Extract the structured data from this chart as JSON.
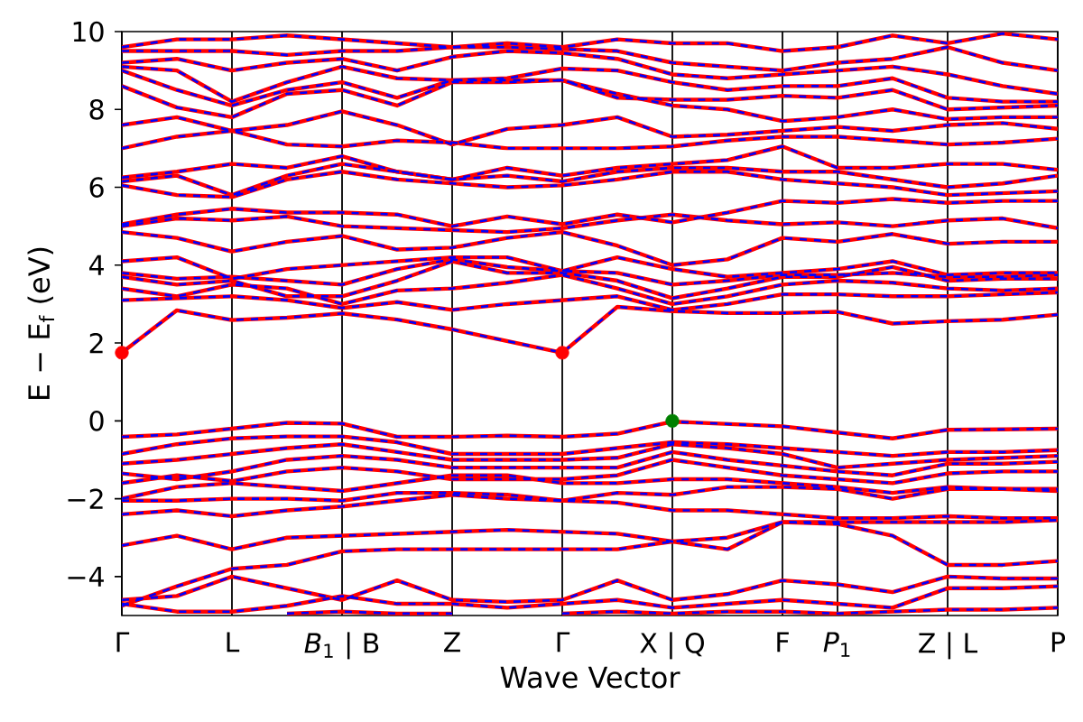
{
  "chart_data": {
    "type": "line",
    "xlabel": "Wave Vector",
    "ylabel": "E − E$_{f}$ (eV)",
    "categories": [
      "Γ",
      null,
      "L",
      null,
      "*B*$_{1}$ | B",
      null,
      "Z",
      null,
      "Γ",
      null,
      "X | Q",
      null,
      "F",
      "*P*$_{1}$",
      null,
      "Z | L",
      null,
      "P"
    ],
    "ylim": [
      -5,
      10
    ],
    "yticks": [
      {
        "value": -4,
        "label": "−4"
      },
      {
        "value": -2,
        "label": "−2"
      },
      0,
      2,
      4,
      6,
      8,
      10
    ],
    "grid": "x",
    "series": [
      {
        "color": "#ff0000",
        "values": [
          -0.41,
          -0.35,
          -0.2,
          -0.05,
          -0.07,
          -0.41,
          -0.41,
          -0.38,
          -0.41,
          -0.33,
          -0.02,
          -0.08,
          -0.14,
          -0.3,
          -0.45,
          -0.23,
          -0.22,
          -0.2
        ]
      },
      {
        "color": "#ff0000",
        "values": [
          -0.85,
          -0.6,
          -0.45,
          -0.4,
          -0.4,
          -0.55,
          -0.85,
          -0.85,
          -0.85,
          -0.7,
          -0.55,
          -0.6,
          -0.7,
          -0.8,
          -0.9,
          -0.8,
          -0.8,
          -0.75
        ]
      },
      {
        "color": "#ff0000",
        "values": [
          -1.1,
          -1.0,
          -0.85,
          -0.7,
          -0.6,
          -0.8,
          -1.0,
          -1.0,
          -1.0,
          -0.95,
          -0.6,
          -0.7,
          -0.85,
          -1.2,
          -1.1,
          -1.0,
          -0.95,
          -0.9
        ]
      },
      {
        "color": "#ff0000",
        "values": [
          -1.35,
          -1.5,
          -1.3,
          -1.0,
          -0.9,
          -1.0,
          -1.2,
          -1.2,
          -1.2,
          -1.2,
          -0.8,
          -1.0,
          -1.15,
          -1.3,
          -1.4,
          -1.1,
          -1.1,
          -1.05
        ]
      },
      {
        "color": "#ff0000",
        "values": [
          -1.6,
          -1.4,
          -1.55,
          -1.3,
          -1.2,
          -1.3,
          -1.5,
          -1.5,
          -1.5,
          -1.4,
          -1.0,
          -1.2,
          -1.4,
          -1.5,
          -1.6,
          -1.35,
          -1.3,
          -1.3
        ]
      },
      {
        "color": "#ff0000",
        "values": [
          -2.0,
          -1.7,
          -1.6,
          -1.7,
          -1.8,
          -1.6,
          -1.4,
          -1.4,
          -1.6,
          -1.6,
          -1.5,
          -1.5,
          -1.6,
          -1.7,
          -1.85,
          -1.7,
          -1.75,
          -1.75
        ]
      },
      {
        "color": "#ff0000",
        "values": [
          -2.05,
          -2.05,
          -2.0,
          -2.0,
          -2.05,
          -1.85,
          -1.85,
          -1.9,
          -2.05,
          -1.85,
          -1.9,
          -1.7,
          -1.7,
          -1.75,
          -2.0,
          -1.75,
          -1.75,
          -1.8
        ]
      },
      {
        "color": "#ff0000",
        "values": [
          -2.4,
          -2.3,
          -2.45,
          -2.3,
          -2.2,
          -2.05,
          -1.9,
          -2.0,
          -2.05,
          -2.1,
          -2.3,
          -2.3,
          -2.4,
          -2.5,
          -2.5,
          -2.45,
          -2.5,
          -2.5
        ]
      },
      {
        "color": "#ff0000",
        "values": [
          -3.2,
          -2.95,
          -3.3,
          -3.0,
          -2.95,
          -2.9,
          -2.85,
          -2.8,
          -2.85,
          -2.9,
          -3.1,
          -3.3,
          -2.6,
          -2.6,
          -2.6,
          -2.6,
          -2.6,
          -2.55
        ]
      },
      {
        "color": "#ff0000",
        "values": [
          -4.75,
          -4.25,
          -3.8,
          -3.7,
          -3.35,
          -3.3,
          -3.3,
          -3.3,
          -3.3,
          -3.3,
          -3.1,
          -3.0,
          -2.6,
          -2.65,
          -2.95,
          -3.7,
          -3.7,
          -3.6
        ]
      },
      {
        "color": "#ff0000",
        "values": [
          -4.6,
          -4.5,
          -4.0,
          -4.3,
          -4.6,
          -4.1,
          -4.6,
          -4.65,
          -4.6,
          -4.1,
          -4.6,
          -4.45,
          -4.1,
          -4.2,
          -4.4,
          -4.0,
          -4.05,
          -4.05
        ]
      },
      {
        "color": "#ff0000",
        "values": [
          -4.7,
          -4.9,
          -4.9,
          -4.75,
          -4.5,
          -4.7,
          -4.7,
          -4.8,
          -4.7,
          -4.6,
          -4.8,
          -4.7,
          -4.6,
          -4.7,
          -4.8,
          -4.3,
          -4.3,
          -4.25
        ]
      },
      {
        "color": "#ff0000",
        "values": [
          null,
          null,
          null,
          -4.95,
          -4.9,
          -4.95,
          -4.95,
          null,
          -4.95,
          -4.9,
          -4.95,
          -4.9,
          -4.9,
          -4.95,
          -4.9,
          -4.85,
          -4.85,
          -4.8
        ]
      },
      {
        "color": "#ff0000",
        "values": [
          1.75,
          2.84,
          2.59,
          2.65,
          2.76,
          2.6,
          2.35,
          2.05,
          1.75,
          2.93,
          2.82,
          2.77,
          2.77,
          2.8,
          2.5,
          2.56,
          2.6,
          2.73
        ]
      },
      {
        "color": "#ff0000",
        "values": [
          3.1,
          3.15,
          3.2,
          3.1,
          2.9,
          3.05,
          2.85,
          3.0,
          3.1,
          3.2,
          2.85,
          3.0,
          3.25,
          3.25,
          3.2,
          3.2,
          3.25,
          3.3
        ]
      },
      {
        "color": "#ff0000",
        "values": [
          3.4,
          3.2,
          3.5,
          3.4,
          3.0,
          3.35,
          3.4,
          3.55,
          3.75,
          3.4,
          3.0,
          3.2,
          3.5,
          3.6,
          3.55,
          3.4,
          3.35,
          3.4
        ]
      },
      {
        "color": "#ff0000",
        "values": [
          3.7,
          3.5,
          3.6,
          3.2,
          3.2,
          3.6,
          4.1,
          3.8,
          3.8,
          3.6,
          3.15,
          3.4,
          3.7,
          3.7,
          3.95,
          3.6,
          3.65,
          3.65
        ]
      },
      {
        "color": "#ff0000",
        "values": [
          3.8,
          3.65,
          3.7,
          3.6,
          3.5,
          3.9,
          4.15,
          3.95,
          3.85,
          3.8,
          3.5,
          3.6,
          3.75,
          3.75,
          3.8,
          3.7,
          3.7,
          3.75
        ]
      },
      {
        "color": "#ff0000",
        "values": [
          4.1,
          4.2,
          3.65,
          3.9,
          4.0,
          4.1,
          4.2,
          4.2,
          3.85,
          4.2,
          3.9,
          3.7,
          3.8,
          3.9,
          4.1,
          3.75,
          3.8,
          3.8
        ]
      },
      {
        "color": "#ff0000",
        "values": [
          4.85,
          4.7,
          4.35,
          4.6,
          4.75,
          4.4,
          4.45,
          4.7,
          4.85,
          4.5,
          4.0,
          4.15,
          4.7,
          4.6,
          4.8,
          4.55,
          4.6,
          4.6
        ]
      },
      {
        "color": "#ff0000",
        "values": [
          5.0,
          5.2,
          5.15,
          5.25,
          5.0,
          4.95,
          4.9,
          4.85,
          4.95,
          5.15,
          5.3,
          5.15,
          5.05,
          5.1,
          5.0,
          5.15,
          5.2,
          4.95
        ]
      },
      {
        "color": "#ff0000",
        "values": [
          5.05,
          5.3,
          5.45,
          5.35,
          5.35,
          5.3,
          5.0,
          5.25,
          5.05,
          5.3,
          5.1,
          5.35,
          5.65,
          5.6,
          5.7,
          5.6,
          5.65,
          5.65
        ]
      },
      {
        "color": "#ff0000",
        "values": [
          6.05,
          5.8,
          5.75,
          6.2,
          6.4,
          6.2,
          6.1,
          6.0,
          6.05,
          6.2,
          6.4,
          6.4,
          6.2,
          6.1,
          6.0,
          5.8,
          5.85,
          5.9
        ]
      },
      {
        "color": "#ff0000",
        "values": [
          6.15,
          6.3,
          5.8,
          6.3,
          6.6,
          6.4,
          6.2,
          6.3,
          6.15,
          6.4,
          6.5,
          6.5,
          6.4,
          6.4,
          6.2,
          6.0,
          6.1,
          6.3
        ]
      },
      {
        "color": "#ff0000",
        "values": [
          6.25,
          6.4,
          6.6,
          6.5,
          6.8,
          6.4,
          6.2,
          6.5,
          6.3,
          6.5,
          6.6,
          6.7,
          7.05,
          6.5,
          6.5,
          6.6,
          6.6,
          6.45
        ]
      },
      {
        "color": "#ff0000",
        "values": [
          7.0,
          7.3,
          7.45,
          7.1,
          7.05,
          7.2,
          7.15,
          7.0,
          7.0,
          7.0,
          7.05,
          7.2,
          7.3,
          7.3,
          7.2,
          7.1,
          7.15,
          7.25
        ]
      },
      {
        "color": "#ff0000",
        "values": [
          7.6,
          7.8,
          7.45,
          7.6,
          7.95,
          7.6,
          7.1,
          7.5,
          7.6,
          7.8,
          7.3,
          7.35,
          7.45,
          7.55,
          7.45,
          7.6,
          7.65,
          7.5
        ]
      },
      {
        "color": "#ff0000",
        "values": [
          8.6,
          8.05,
          7.8,
          8.4,
          8.5,
          8.1,
          8.7,
          8.7,
          8.75,
          8.4,
          8.1,
          8.0,
          7.7,
          7.8,
          8.0,
          7.75,
          7.8,
          7.8
        ]
      },
      {
        "color": "#ff0000",
        "values": [
          9.0,
          8.5,
          8.1,
          8.5,
          8.7,
          8.3,
          8.75,
          8.75,
          8.75,
          8.3,
          8.25,
          8.25,
          8.35,
          8.3,
          8.5,
          8.0,
          8.05,
          8.1
        ]
      },
      {
        "color": "#ff0000",
        "values": [
          9.1,
          9.0,
          8.2,
          8.7,
          9.1,
          8.8,
          8.75,
          8.8,
          9.05,
          9.0,
          8.7,
          8.5,
          8.6,
          8.6,
          8.8,
          8.3,
          8.2,
          8.2
        ]
      },
      {
        "color": "#ff0000",
        "values": [
          9.2,
          9.3,
          9.0,
          9.2,
          9.3,
          9.0,
          9.35,
          9.5,
          9.45,
          9.3,
          8.9,
          8.8,
          8.9,
          9.0,
          9.1,
          8.9,
          8.6,
          8.4
        ]
      },
      {
        "color": "#ff0000",
        "values": [
          9.5,
          9.5,
          9.5,
          9.4,
          9.5,
          9.5,
          9.6,
          9.6,
          9.55,
          9.5,
          9.2,
          9.1,
          9.0,
          9.2,
          9.3,
          9.6,
          9.2,
          9.0
        ]
      },
      {
        "color": "#ff0000",
        "values": [
          9.6,
          9.8,
          9.8,
          9.9,
          9.8,
          9.7,
          9.6,
          9.7,
          9.6,
          9.8,
          9.7,
          9.7,
          9.5,
          9.6,
          9.9,
          9.7,
          9.95,
          9.8
        ]
      },
      {
        "color": "#0000ff",
        "line_style": "dashed",
        "values": [
          -0.41,
          -0.35,
          -0.2,
          -0.05,
          -0.07,
          -0.41,
          -0.41,
          -0.38,
          -0.41,
          -0.33,
          -0.02,
          -0.08,
          -0.14,
          -0.3,
          -0.45,
          -0.23,
          -0.22,
          -0.2
        ]
      },
      {
        "color": "#0000ff",
        "line_style": "dashed",
        "values": [
          -0.85,
          -0.6,
          -0.45,
          -0.4,
          -0.4,
          -0.55,
          -0.85,
          -0.85,
          -0.85,
          -0.7,
          -0.55,
          -0.6,
          -0.7,
          -0.8,
          -0.9,
          -0.8,
          -0.8,
          -0.75
        ]
      },
      {
        "color": "#0000ff",
        "line_style": "dashed",
        "values": [
          -1.1,
          -1.0,
          -0.85,
          -0.7,
          -0.6,
          -0.8,
          -1.0,
          -1.0,
          -1.0,
          -0.95,
          -0.6,
          -0.7,
          -0.85,
          -1.2,
          -1.1,
          -1.0,
          -0.95,
          -0.9
        ]
      },
      {
        "color": "#0000ff",
        "line_style": "dashed",
        "values": [
          -1.35,
          -1.5,
          -1.3,
          -1.0,
          -0.9,
          -1.0,
          -1.2,
          -1.2,
          -1.2,
          -1.2,
          -0.8,
          -1.0,
          -1.15,
          -1.3,
          -1.4,
          -1.1,
          -1.1,
          -1.05
        ]
      },
      {
        "color": "#0000ff",
        "line_style": "dashed",
        "values": [
          -1.6,
          -1.4,
          -1.55,
          -1.3,
          -1.2,
          -1.3,
          -1.5,
          -1.5,
          -1.5,
          -1.4,
          -1.0,
          -1.2,
          -1.4,
          -1.5,
          -1.6,
          -1.35,
          -1.3,
          -1.3
        ]
      },
      {
        "color": "#0000ff",
        "line_style": "dashed",
        "values": [
          -2.0,
          -1.7,
          -1.6,
          -1.7,
          -1.8,
          -1.6,
          -1.4,
          -1.4,
          -1.6,
          -1.6,
          -1.5,
          -1.5,
          -1.6,
          -1.7,
          -1.85,
          -1.7,
          -1.75,
          -1.75
        ]
      },
      {
        "color": "#0000ff",
        "line_style": "dashed",
        "values": [
          -2.05,
          -2.05,
          -2.0,
          -2.0,
          -2.05,
          -1.85,
          -1.85,
          -1.9,
          -2.05,
          -1.85,
          -1.9,
          -1.7,
          -1.7,
          -1.75,
          -2.0,
          -1.75,
          -1.75,
          -1.8
        ]
      },
      {
        "color": "#0000ff",
        "line_style": "dashed",
        "values": [
          -2.4,
          -2.3,
          -2.45,
          -2.3,
          -2.2,
          -2.05,
          -1.9,
          -2.0,
          -2.05,
          -2.1,
          -2.3,
          -2.3,
          -2.4,
          -2.5,
          -2.5,
          -2.45,
          -2.5,
          -2.5
        ]
      },
      {
        "color": "#0000ff",
        "line_style": "dashed",
        "values": [
          -3.2,
          -2.95,
          -3.3,
          -3.0,
          -2.95,
          -2.9,
          -2.85,
          -2.8,
          -2.85,
          -2.9,
          -3.1,
          -3.3,
          -2.6,
          -2.6,
          -2.6,
          -2.6,
          -2.6,
          -2.55
        ]
      },
      {
        "color": "#0000ff",
        "line_style": "dashed",
        "values": [
          -4.75,
          -4.25,
          -3.8,
          -3.7,
          -3.35,
          -3.3,
          -3.3,
          -3.3,
          -3.3,
          -3.3,
          -3.1,
          -3.0,
          -2.6,
          -2.65,
          -2.95,
          -3.7,
          -3.7,
          -3.6
        ]
      },
      {
        "color": "#0000ff",
        "line_style": "dashed",
        "values": [
          -4.6,
          -4.5,
          -4.0,
          -4.3,
          -4.6,
          -4.1,
          -4.6,
          -4.65,
          -4.6,
          -4.1,
          -4.6,
          -4.45,
          -4.1,
          -4.2,
          -4.4,
          -4.0,
          -4.05,
          -4.05
        ]
      },
      {
        "color": "#0000ff",
        "line_style": "dashed",
        "values": [
          -4.7,
          -4.9,
          -4.9,
          -4.75,
          -4.5,
          -4.7,
          -4.7,
          -4.8,
          -4.7,
          -4.6,
          -4.8,
          -4.7,
          -4.6,
          -4.7,
          -4.8,
          -4.3,
          -4.3,
          -4.25
        ]
      },
      {
        "color": "#0000ff",
        "line_style": "dashed",
        "values": [
          null,
          null,
          null,
          -4.95,
          -4.9,
          -4.95,
          -4.95,
          null,
          -4.95,
          -4.9,
          -4.95,
          -4.9,
          -4.9,
          -4.95,
          -4.9,
          -4.85,
          -4.85,
          -4.8
        ]
      },
      {
        "color": "#0000ff",
        "line_style": "dashed",
        "values": [
          1.75,
          2.84,
          2.59,
          2.65,
          2.76,
          2.6,
          2.35,
          2.05,
          1.75,
          2.93,
          2.82,
          2.77,
          2.77,
          2.8,
          2.5,
          2.56,
          2.6,
          2.73
        ]
      },
      {
        "color": "#0000ff",
        "line_style": "dashed",
        "values": [
          3.1,
          3.15,
          3.2,
          3.1,
          2.9,
          3.05,
          2.85,
          3.0,
          3.1,
          3.2,
          2.85,
          3.0,
          3.25,
          3.25,
          3.2,
          3.2,
          3.25,
          3.3
        ]
      },
      {
        "color": "#0000ff",
        "line_style": "dashed",
        "values": [
          3.4,
          3.2,
          3.5,
          3.4,
          3.0,
          3.35,
          3.4,
          3.55,
          3.75,
          3.4,
          3.0,
          3.2,
          3.5,
          3.6,
          3.55,
          3.4,
          3.35,
          3.4
        ]
      },
      {
        "color": "#0000ff",
        "line_style": "dashed",
        "values": [
          3.7,
          3.5,
          3.6,
          3.2,
          3.2,
          3.6,
          4.1,
          3.8,
          3.8,
          3.6,
          3.15,
          3.4,
          3.7,
          3.7,
          3.95,
          3.6,
          3.65,
          3.65
        ]
      },
      {
        "color": "#0000ff",
        "line_style": "dashed",
        "values": [
          3.8,
          3.65,
          3.7,
          3.6,
          3.5,
          3.9,
          4.15,
          3.95,
          3.85,
          3.8,
          3.5,
          3.6,
          3.75,
          3.75,
          3.8,
          3.7,
          3.7,
          3.75
        ]
      },
      {
        "color": "#0000ff",
        "line_style": "dashed",
        "values": [
          4.1,
          4.2,
          3.65,
          3.9,
          4.0,
          4.1,
          4.2,
          4.2,
          3.85,
          4.2,
          3.9,
          3.7,
          3.8,
          3.9,
          4.1,
          3.75,
          3.8,
          3.8
        ]
      },
      {
        "color": "#0000ff",
        "line_style": "dashed",
        "values": [
          4.85,
          4.7,
          4.35,
          4.6,
          4.75,
          4.4,
          4.45,
          4.7,
          4.85,
          4.5,
          4.0,
          4.15,
          4.7,
          4.6,
          4.8,
          4.55,
          4.6,
          4.6
        ]
      },
      {
        "color": "#0000ff",
        "line_style": "dashed",
        "values": [
          5.0,
          5.2,
          5.15,
          5.25,
          5.0,
          4.95,
          4.9,
          4.85,
          4.95,
          5.15,
          5.3,
          5.15,
          5.05,
          5.1,
          5.0,
          5.15,
          5.2,
          4.95
        ]
      },
      {
        "color": "#0000ff",
        "line_style": "dashed",
        "values": [
          5.05,
          5.3,
          5.45,
          5.35,
          5.35,
          5.3,
          5.0,
          5.25,
          5.05,
          5.3,
          5.1,
          5.35,
          5.65,
          5.6,
          5.7,
          5.6,
          5.65,
          5.65
        ]
      },
      {
        "color": "#0000ff",
        "line_style": "dashed",
        "values": [
          6.05,
          5.8,
          5.75,
          6.2,
          6.4,
          6.2,
          6.1,
          6.0,
          6.05,
          6.2,
          6.4,
          6.4,
          6.2,
          6.1,
          6.0,
          5.8,
          5.85,
          5.9
        ]
      },
      {
        "color": "#0000ff",
        "line_style": "dashed",
        "values": [
          6.15,
          6.3,
          5.8,
          6.3,
          6.6,
          6.4,
          6.2,
          6.3,
          6.15,
          6.4,
          6.5,
          6.5,
          6.4,
          6.4,
          6.2,
          6.0,
          6.1,
          6.3
        ]
      },
      {
        "color": "#0000ff",
        "line_style": "dashed",
        "values": [
          6.25,
          6.4,
          6.6,
          6.5,
          6.8,
          6.4,
          6.2,
          6.5,
          6.3,
          6.5,
          6.6,
          6.7,
          7.05,
          6.5,
          6.5,
          6.6,
          6.6,
          6.45
        ]
      },
      {
        "color": "#0000ff",
        "line_style": "dashed",
        "values": [
          7.0,
          7.3,
          7.45,
          7.1,
          7.05,
          7.2,
          7.15,
          7.0,
          7.0,
          7.0,
          7.05,
          7.2,
          7.3,
          7.3,
          7.2,
          7.1,
          7.15,
          7.25
        ]
      },
      {
        "color": "#0000ff",
        "line_style": "dashed",
        "values": [
          7.6,
          7.8,
          7.45,
          7.6,
          7.95,
          7.6,
          7.1,
          7.5,
          7.6,
          7.8,
          7.3,
          7.35,
          7.45,
          7.55,
          7.45,
          7.6,
          7.65,
          7.5
        ]
      },
      {
        "color": "#0000ff",
        "line_style": "dashed",
        "values": [
          8.6,
          8.05,
          7.8,
          8.4,
          8.5,
          8.1,
          8.7,
          8.7,
          8.75,
          8.4,
          8.1,
          8.0,
          7.7,
          7.8,
          8.0,
          7.75,
          7.8,
          7.8
        ]
      },
      {
        "color": "#0000ff",
        "line_style": "dashed",
        "values": [
          9.0,
          8.5,
          8.1,
          8.5,
          8.7,
          8.3,
          8.75,
          8.75,
          8.75,
          8.3,
          8.25,
          8.25,
          8.35,
          8.3,
          8.5,
          8.0,
          8.05,
          8.1
        ]
      },
      {
        "color": "#0000ff",
        "line_style": "dashed",
        "values": [
          9.1,
          9.0,
          8.2,
          8.7,
          9.1,
          8.8,
          8.75,
          8.8,
          9.05,
          9.0,
          8.7,
          8.5,
          8.6,
          8.6,
          8.8,
          8.3,
          8.2,
          8.2
        ]
      },
      {
        "color": "#0000ff",
        "line_style": "dashed",
        "values": [
          9.2,
          9.3,
          9.0,
          9.2,
          9.3,
          9.0,
          9.35,
          9.5,
          9.45,
          9.3,
          8.9,
          8.8,
          8.9,
          9.0,
          9.1,
          8.9,
          8.6,
          8.4
        ]
      },
      {
        "color": "#0000ff",
        "line_style": "dashed",
        "values": [
          9.5,
          9.5,
          9.5,
          9.4,
          9.5,
          9.5,
          9.6,
          9.6,
          9.55,
          9.5,
          9.2,
          9.1,
          9.0,
          9.2,
          9.3,
          9.6,
          9.2,
          9.0
        ]
      },
      {
        "color": "#0000ff",
        "line_style": "dashed",
        "values": [
          9.6,
          9.8,
          9.8,
          9.9,
          9.8,
          9.7,
          9.6,
          9.7,
          9.6,
          9.8,
          9.7,
          9.7,
          9.5,
          9.6,
          9.9,
          9.7,
          9.95,
          9.8
        ]
      },
      {
        "type": "scatter",
        "marker": "circle",
        "color": "#ff0000",
        "values": [
          1.75,
          null,
          null,
          null,
          null,
          null,
          null,
          null,
          1.75,
          null,
          null,
          null,
          null,
          null,
          null,
          null,
          null,
          null
        ]
      },
      {
        "type": "scatter",
        "marker": "circle",
        "color": "#008000",
        "values": [
          null,
          null,
          null,
          null,
          null,
          null,
          null,
          null,
          null,
          null,
          0.0,
          null,
          null,
          null,
          null,
          null,
          null,
          null
        ]
      }
    ]
  }
}
